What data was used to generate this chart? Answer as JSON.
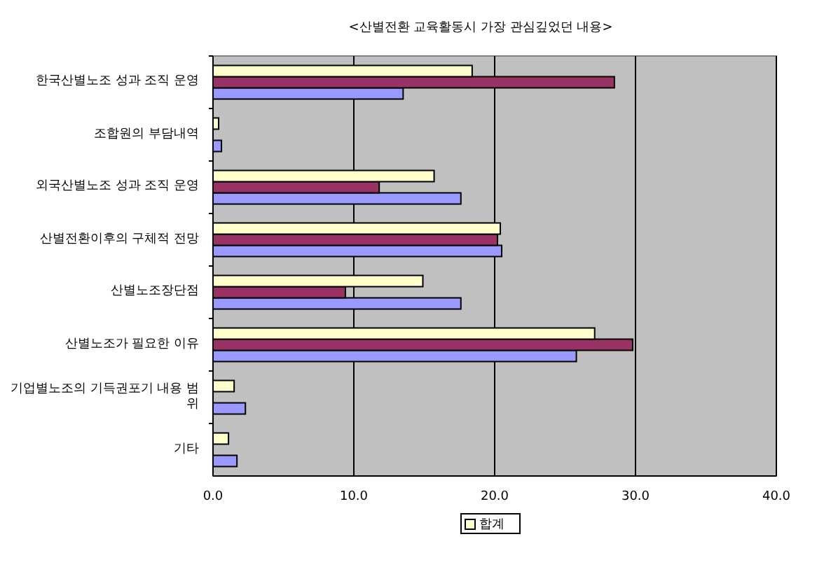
{
  "chart_data": {
    "type": "bar",
    "orientation": "horizontal",
    "title": "<산별전환 교육활동시 가장 관심깊었던 내용>",
    "categories": [
      "한국산별노조 성과 조직 운영",
      "조합원의 부담내역",
      "외국산별노조 성과 조직 운영",
      "산별전환이후의 구체적 전망",
      "산별노조장단점",
      "산별노조가 필요한 이유",
      "기업별노조의 기득권포기 내용 범위",
      "기타"
    ],
    "series": [
      {
        "color": "#9999ff",
        "values": [
          13.5,
          0.6,
          17.6,
          20.5,
          17.6,
          25.8,
          2.3,
          1.7
        ]
      },
      {
        "color": "#993366",
        "values": [
          28.5,
          0,
          11.8,
          20.2,
          9.4,
          29.8,
          0,
          0
        ]
      },
      {
        "name": "합계",
        "color": "#ffffcc",
        "values": [
          18.4,
          0.4,
          15.7,
          20.4,
          14.9,
          27.1,
          1.5,
          1.1
        ]
      }
    ],
    "xlim": [
      0,
      40
    ],
    "xticks": [
      {
        "value": 0,
        "label": "0.0"
      },
      {
        "value": 10,
        "label": "10.0"
      },
      {
        "value": 20,
        "label": "20.0"
      },
      {
        "value": 30,
        "label": "30.0"
      },
      {
        "value": 40,
        "label": "40.0"
      }
    ],
    "grid": "x",
    "legend": "bottom"
  }
}
